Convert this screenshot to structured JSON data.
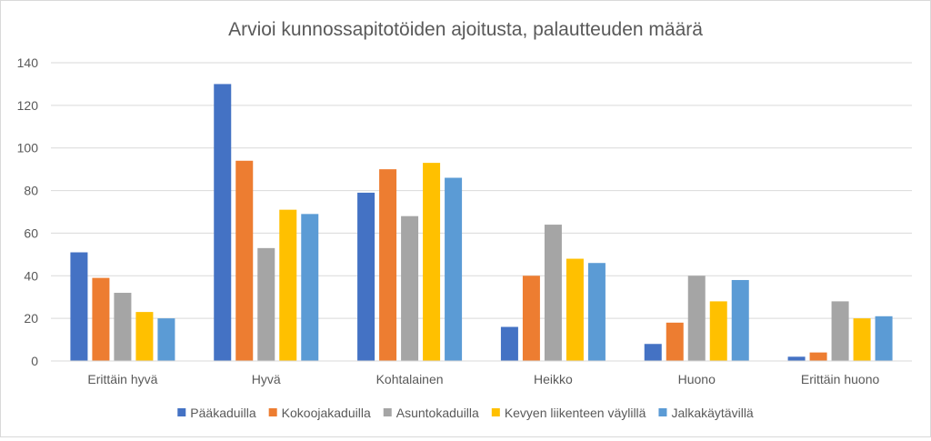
{
  "chart_data": {
    "type": "bar",
    "title": "Arvioi kunnossapitotöiden ajoitusta, palautteuden määrä",
    "xlabel": "",
    "ylabel": "",
    "ylim": [
      0,
      140
    ],
    "yticks": [
      0,
      20,
      40,
      60,
      80,
      100,
      120,
      140
    ],
    "grid": true,
    "legend_position": "bottom",
    "categories": [
      "Erittäin hyvä",
      "Hyvä",
      "Kohtalainen",
      "Heikko",
      "Huono",
      "Erittäin huono"
    ],
    "series": [
      {
        "name": "Pääkaduilla",
        "color": "#4472c4",
        "values": [
          51,
          130,
          79,
          16,
          8,
          2
        ]
      },
      {
        "name": "Kokoojakaduilla",
        "color": "#ed7d31",
        "values": [
          39,
          94,
          90,
          40,
          18,
          4
        ]
      },
      {
        "name": "Asuntokaduilla",
        "color": "#a5a5a5",
        "values": [
          32,
          53,
          68,
          64,
          40,
          28
        ]
      },
      {
        "name": "Kevyen liikenteen väylillä",
        "color": "#ffc000",
        "values": [
          23,
          71,
          93,
          48,
          28,
          20
        ]
      },
      {
        "name": "Jalkakäytävillä",
        "color": "#5b9bd5",
        "values": [
          20,
          69,
          86,
          46,
          38,
          21
        ]
      }
    ]
  }
}
